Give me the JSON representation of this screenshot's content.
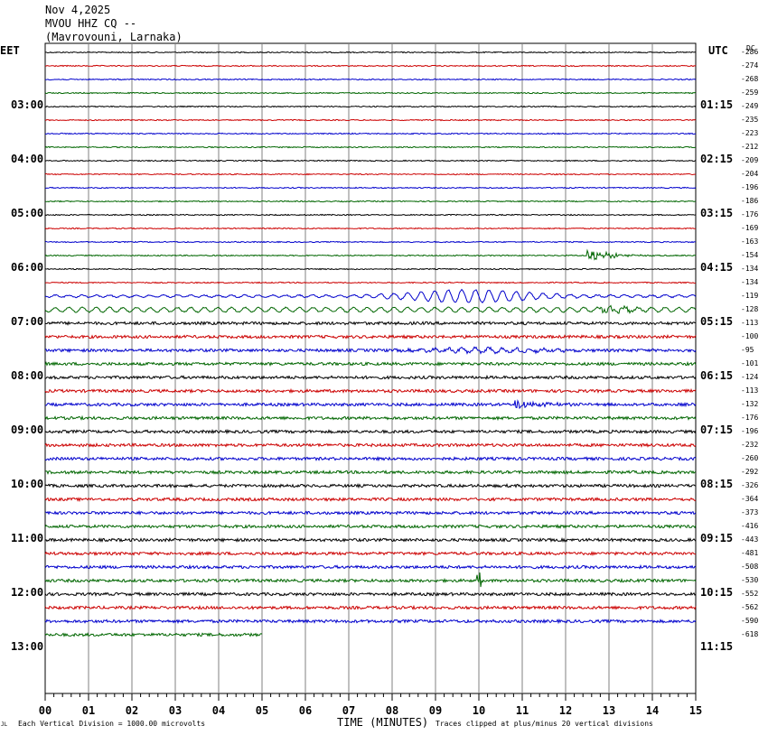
{
  "header": {
    "date": "Nov 4,2025",
    "station": "MVOU HHZ CQ --",
    "location": "(Mavrovouni, Larnaka)"
  },
  "left_zone": "EET",
  "right_zone": "UTC",
  "dc_label": "DC",
  "footer": {
    "scale": "Each Vertical Division = 1000.00 microvolts",
    "xlabel": "TIME (MINUTES)",
    "clip": "Traces clipped at plus/minus 20 vertical divisions",
    "corner_mark": "JL"
  },
  "colors": {
    "black": "#000000",
    "red": "#cc0000",
    "blue": "#0000cc",
    "green": "#006600",
    "grid": "#808080"
  },
  "chart_data": {
    "type": "line",
    "title": "MVOU HHZ CQ --",
    "xlabel": "TIME (MINUTES)",
    "xlim": [
      0,
      15
    ],
    "x_ticks": [
      "00",
      "01",
      "02",
      "03",
      "04",
      "05",
      "06",
      "07",
      "08",
      "09",
      "10",
      "11",
      "12",
      "13",
      "14",
      "15"
    ],
    "left_hour_labels": [
      "03:00",
      "04:00",
      "05:00",
      "06:00",
      "07:00",
      "08:00",
      "09:00",
      "10:00",
      "11:00",
      "12:00",
      "13:00"
    ],
    "right_hour_labels": [
      "01:15",
      "02:15",
      "03:15",
      "04:15",
      "05:15",
      "06:15",
      "07:15",
      "08:15",
      "09:15",
      "10:15",
      "11:15"
    ],
    "dc_offsets": [
      -286,
      -274,
      -268,
      -259,
      -249,
      -235,
      -223,
      -212,
      -209,
      -204,
      -196,
      -186,
      -176,
      -169,
      -163,
      -154,
      -134,
      -134,
      -119,
      -128,
      -113,
      -100,
      -95,
      -101,
      -124,
      -113,
      -132,
      -176,
      -196,
      -232,
      -260,
      -292,
      -326,
      -364,
      -373,
      -416,
      -443,
      -481,
      -508,
      -530,
      -552,
      -562,
      -590,
      -618
    ],
    "trace_colors": [
      "black",
      "red",
      "blue",
      "green"
    ],
    "last_trace_end_minute": 5,
    "events": [
      {
        "trace": 15,
        "minute": 12.5,
        "amp": 9,
        "type": "quake"
      },
      {
        "trace": 18,
        "minute": 9.2,
        "amp": 7,
        "type": "wave"
      },
      {
        "trace": 19,
        "minute": 12.8,
        "amp": 8,
        "type": "quake"
      },
      {
        "trace": 22,
        "minute": 10.0,
        "amp": 3,
        "type": "wave"
      },
      {
        "trace": 26,
        "minute": 10.8,
        "amp": 6,
        "type": "quake"
      },
      {
        "trace": 39,
        "minute": 10.0,
        "amp": 8,
        "type": "spike"
      }
    ]
  }
}
